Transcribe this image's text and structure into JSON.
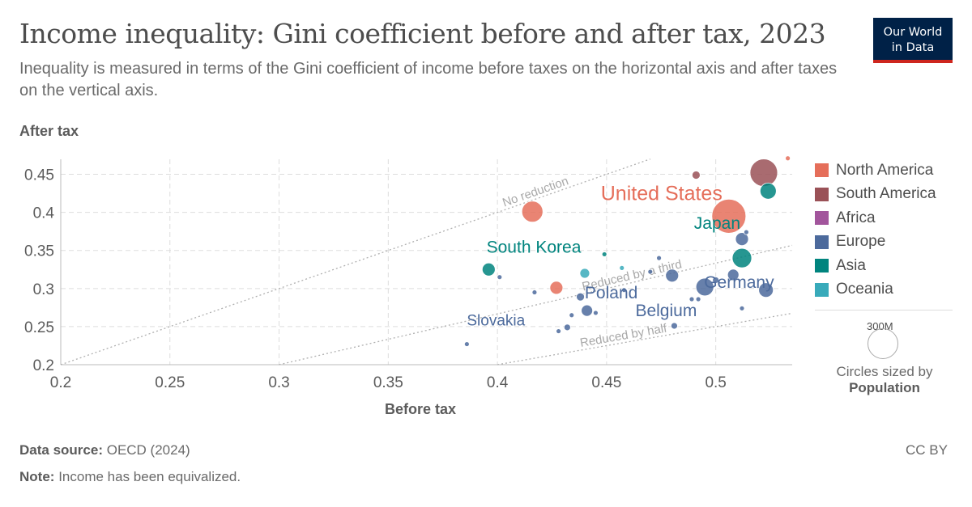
{
  "header": {
    "title": "Income inequality: Gini coefficient before and after tax, 2023",
    "subtitle": "Inequality is measured in terms of the Gini coefficient of income before taxes on the horizontal axis and after taxes on the vertical axis.",
    "logo_line1": "Our World",
    "logo_line2": "in Data"
  },
  "legend": {
    "items": [
      {
        "label": "North America",
        "color": "#e56e5a"
      },
      {
        "label": "South America",
        "color": "#9a5157"
      },
      {
        "label": "Africa",
        "color": "#a2559c"
      },
      {
        "label": "Europe",
        "color": "#4c6a9c"
      },
      {
        "label": "Asia",
        "color": "#00847e"
      },
      {
        "label": "Oceania",
        "color": "#38aaba"
      }
    ],
    "size_value": "300M",
    "size_note": "Circles sized by",
    "size_variable": "Population"
  },
  "footer": {
    "source_label": "Data source:",
    "source_value": "OECD (2024)",
    "note_label": "Note:",
    "note_value": "Income has been equivalized.",
    "license": "CC BY"
  },
  "chart_data": {
    "type": "scatter",
    "xlabel": "Before tax",
    "ylabel": "After tax",
    "xlim": [
      0.2,
      0.535
    ],
    "ylim": [
      0.2,
      0.475
    ],
    "xticks": [
      "0.2",
      "0.25",
      "0.3",
      "0.35",
      "0.4",
      "0.45",
      "0.5"
    ],
    "yticks": [
      "0.2",
      "0.25",
      "0.3",
      "0.35",
      "0.4",
      "0.45"
    ],
    "grid": true,
    "legend_position": "right",
    "reference_lines": [
      {
        "label": "No reduction",
        "factor": 1
      },
      {
        "label": "Reduced by a third",
        "factor": 0.6667
      },
      {
        "label": "Reduced by half",
        "factor": 0.5
      }
    ],
    "series": [
      {
        "name": "North America",
        "color": "#e56e5a",
        "points": [
          {
            "x": 0.506,
            "y": 0.395,
            "size": 21,
            "label": "United States"
          },
          {
            "x": 0.416,
            "y": 0.401,
            "size": 13
          },
          {
            "x": 0.427,
            "y": 0.301,
            "size": 8
          },
          {
            "x": 0.533,
            "y": 0.471,
            "size": 3
          }
        ]
      },
      {
        "name": "South America",
        "color": "#9a5157",
        "points": [
          {
            "x": 0.522,
            "y": 0.452,
            "size": 17
          },
          {
            "x": 0.491,
            "y": 0.449,
            "size": 5
          }
        ]
      },
      {
        "name": "Europe",
        "color": "#4c6a9c",
        "points": [
          {
            "x": 0.495,
            "y": 0.302,
            "size": 11
          },
          {
            "x": 0.441,
            "y": 0.271,
            "size": 7,
            "label": "Poland"
          },
          {
            "x": 0.48,
            "y": 0.317,
            "size": 8
          },
          {
            "x": 0.523,
            "y": 0.298,
            "size": 9
          },
          {
            "x": 0.512,
            "y": 0.365,
            "size": 8
          },
          {
            "x": 0.508,
            "y": 0.318,
            "size": 7,
            "label": "Germany"
          },
          {
            "x": 0.481,
            "y": 0.251,
            "size": 4,
            "label": "Belgium"
          },
          {
            "x": 0.386,
            "y": 0.227,
            "size": 3,
            "label": "Slovakia"
          },
          {
            "x": 0.438,
            "y": 0.289,
            "size": 5
          },
          {
            "x": 0.401,
            "y": 0.315,
            "size": 3
          },
          {
            "x": 0.417,
            "y": 0.295,
            "size": 3
          },
          {
            "x": 0.428,
            "y": 0.244,
            "size": 3
          },
          {
            "x": 0.432,
            "y": 0.249,
            "size": 4
          },
          {
            "x": 0.434,
            "y": 0.265,
            "size": 3
          },
          {
            "x": 0.445,
            "y": 0.268,
            "size": 3
          },
          {
            "x": 0.458,
            "y": 0.298,
            "size": 3
          },
          {
            "x": 0.474,
            "y": 0.34,
            "size": 3
          },
          {
            "x": 0.489,
            "y": 0.286,
            "size": 3
          },
          {
            "x": 0.492,
            "y": 0.286,
            "size": 3
          },
          {
            "x": 0.5,
            "y": 0.311,
            "size": 4
          },
          {
            "x": 0.512,
            "y": 0.274,
            "size": 3
          },
          {
            "x": 0.514,
            "y": 0.374,
            "size": 3
          },
          {
            "x": 0.47,
            "y": 0.322,
            "size": 3
          }
        ]
      },
      {
        "name": "Asia",
        "color": "#00847e",
        "points": [
          {
            "x": 0.512,
            "y": 0.34,
            "size": 12,
            "label": "Japan"
          },
          {
            "x": 0.396,
            "y": 0.325,
            "size": 8,
            "label": "South Korea"
          },
          {
            "x": 0.524,
            "y": 0.428,
            "size": 10
          },
          {
            "x": 0.449,
            "y": 0.345,
            "size": 3
          }
        ]
      },
      {
        "name": "Oceania",
        "color": "#38aaba",
        "points": [
          {
            "x": 0.44,
            "y": 0.32,
            "size": 6
          },
          {
            "x": 0.457,
            "y": 0.327,
            "size": 3
          }
        ]
      }
    ]
  }
}
